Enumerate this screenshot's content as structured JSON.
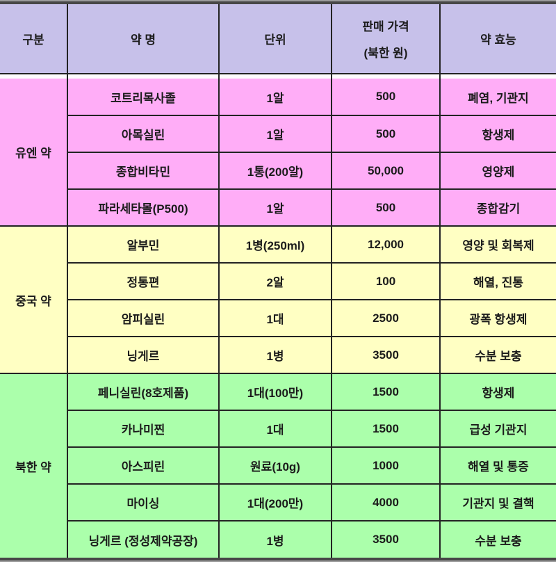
{
  "colors": {
    "header_bg": "#c7c1ea",
    "un_bg": "#ffadf7",
    "china_bg": "#ffffc3",
    "nk_bg": "#abffab",
    "grid_line": "#232323",
    "frame_dark": "#474747",
    "frame_light": "#9b9b9b",
    "gap_bg": "#fdfbfc",
    "text": "#1b1b1b"
  },
  "table": {
    "headers": [
      {
        "label": "구분"
      },
      {
        "label": "약 명"
      },
      {
        "label": "단위"
      },
      {
        "label": "판매 가격",
        "sublabel": "(북한 원)"
      },
      {
        "label": "약 효능"
      }
    ],
    "groups": [
      {
        "label": "유엔 약",
        "bg_key": "un_bg",
        "rows": [
          [
            "코트리목사졸",
            "1알",
            "500",
            "폐염, 기관지"
          ],
          [
            "아목실린",
            "1알",
            "500",
            "항생제"
          ],
          [
            "종합비타민",
            "1통(200알)",
            "50,000",
            "영양제"
          ],
          [
            "파라세타몰(P500)",
            "1알",
            "500",
            "종합감기"
          ]
        ]
      },
      {
        "label": "중국 약",
        "bg_key": "china_bg",
        "rows": [
          [
            "알부민",
            "1병(250ml)",
            "12,000",
            "영양 및 회복제"
          ],
          [
            "정통편",
            "2알",
            "100",
            "해열, 진통"
          ],
          [
            "암피실린",
            "1대",
            "2500",
            "광폭 항생제"
          ],
          [
            "닝게르",
            "1병",
            "3500",
            "수분 보충"
          ]
        ]
      },
      {
        "label": "북한 약",
        "bg_key": "nk_bg",
        "rows": [
          [
            "페니실린(8호제품)",
            "1대(100만)",
            "1500",
            "항생제"
          ],
          [
            "카나미찐",
            "1대",
            "1500",
            "급성 기관지"
          ],
          [
            "아스피린",
            "원료(10g)",
            "1000",
            "해열 및 통증"
          ],
          [
            "마이싱",
            "1대(200만)",
            "4000",
            "기관지 및 결핵"
          ],
          [
            "닝게르 (정성제약공장)",
            "1병",
            "3500",
            "수분 보충"
          ]
        ]
      }
    ]
  }
}
